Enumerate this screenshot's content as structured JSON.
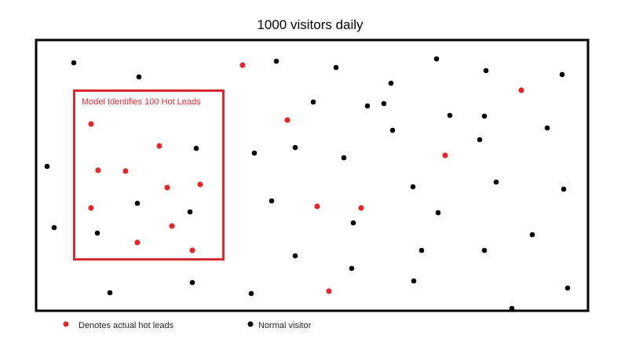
{
  "title": "1000 visitors daily",
  "model_box_label": "Model Identifies 100 Hot Leads",
  "legend": {
    "hot_lead_label": "Denotes actual hot leads",
    "normal_label": "Normal visitor"
  },
  "colors": {
    "hot_lead": "#e0282e",
    "normal": "#000000",
    "model_box": "#d92b32",
    "border": "#000000"
  },
  "visitors": {
    "hot_leads_inside_model": 10,
    "hot_leads_outside_model": 8,
    "normal_inside_model": 5,
    "normal_outside_model": 48
  }
}
